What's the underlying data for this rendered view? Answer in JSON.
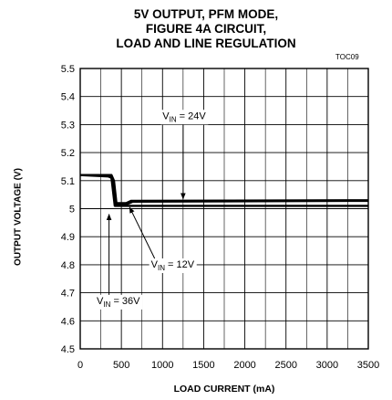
{
  "chart_data": {
    "type": "line",
    "title_lines": [
      "5V OUTPUT, PFM MODE,",
      "FIGURE 4A CIRCUIT,",
      "LOAD AND LINE REGULATION"
    ],
    "figure_code": "TOC09",
    "xlabel": "LOAD CURRENT (mA)",
    "ylabel": "OUTPUT  VOLTAGE  (V)",
    "xlim": [
      0,
      3500
    ],
    "ylim": [
      4.5,
      5.5
    ],
    "x_ticks": [
      0,
      500,
      1000,
      1500,
      2000,
      2500,
      3000,
      3500
    ],
    "x_tick_labels": [
      "0",
      "500",
      "1000",
      "1500",
      "2000",
      "2500",
      "3000",
      "3500"
    ],
    "y_ticks": [
      4.5,
      4.6,
      4.7,
      4.8,
      4.9,
      5.0,
      5.1,
      5.2,
      5.3,
      5.4,
      5.5
    ],
    "y_tick_labels": [
      "4.5",
      "4.6",
      "4.7",
      "4.8",
      "4.9",
      "5",
      "5.1",
      "5.2",
      "5.3",
      "5.4",
      "5.5"
    ],
    "grid": true,
    "series": [
      {
        "name": "VIN = 36V",
        "x": [
          0,
          340,
          380,
          420,
          600,
          3500
        ],
        "y": [
          5.12,
          5.115,
          5.11,
          5.01,
          5.01,
          5.01
        ]
      },
      {
        "name": "VIN = 12V",
        "x": [
          0,
          380,
          410,
          440,
          560,
          620,
          3500
        ],
        "y": [
          5.12,
          5.12,
          5.1,
          5.02,
          5.02,
          5.028,
          5.03
        ]
      },
      {
        "name": "VIN = 24V",
        "x": [
          0,
          370,
          400,
          440,
          560,
          640,
          3500
        ],
        "y": [
          5.12,
          5.12,
          5.09,
          5.015,
          5.015,
          5.025,
          5.028
        ]
      }
    ],
    "annotations": [
      {
        "base": "V",
        "sub": "IN",
        "rest": " = 24V",
        "x": 1000,
        "y": 5.32,
        "arrow_to": [
          1250,
          5.035
        ]
      },
      {
        "base": "V",
        "sub": "IN",
        "rest": " = 12V",
        "x": 860,
        "y": 4.79,
        "arrow_to": [
          600,
          5.005
        ]
      },
      {
        "base": "V",
        "sub": "IN",
        "rest": " = 36V",
        "x": 200,
        "y": 4.66,
        "arrow_to": [
          350,
          4.98
        ]
      }
    ]
  }
}
